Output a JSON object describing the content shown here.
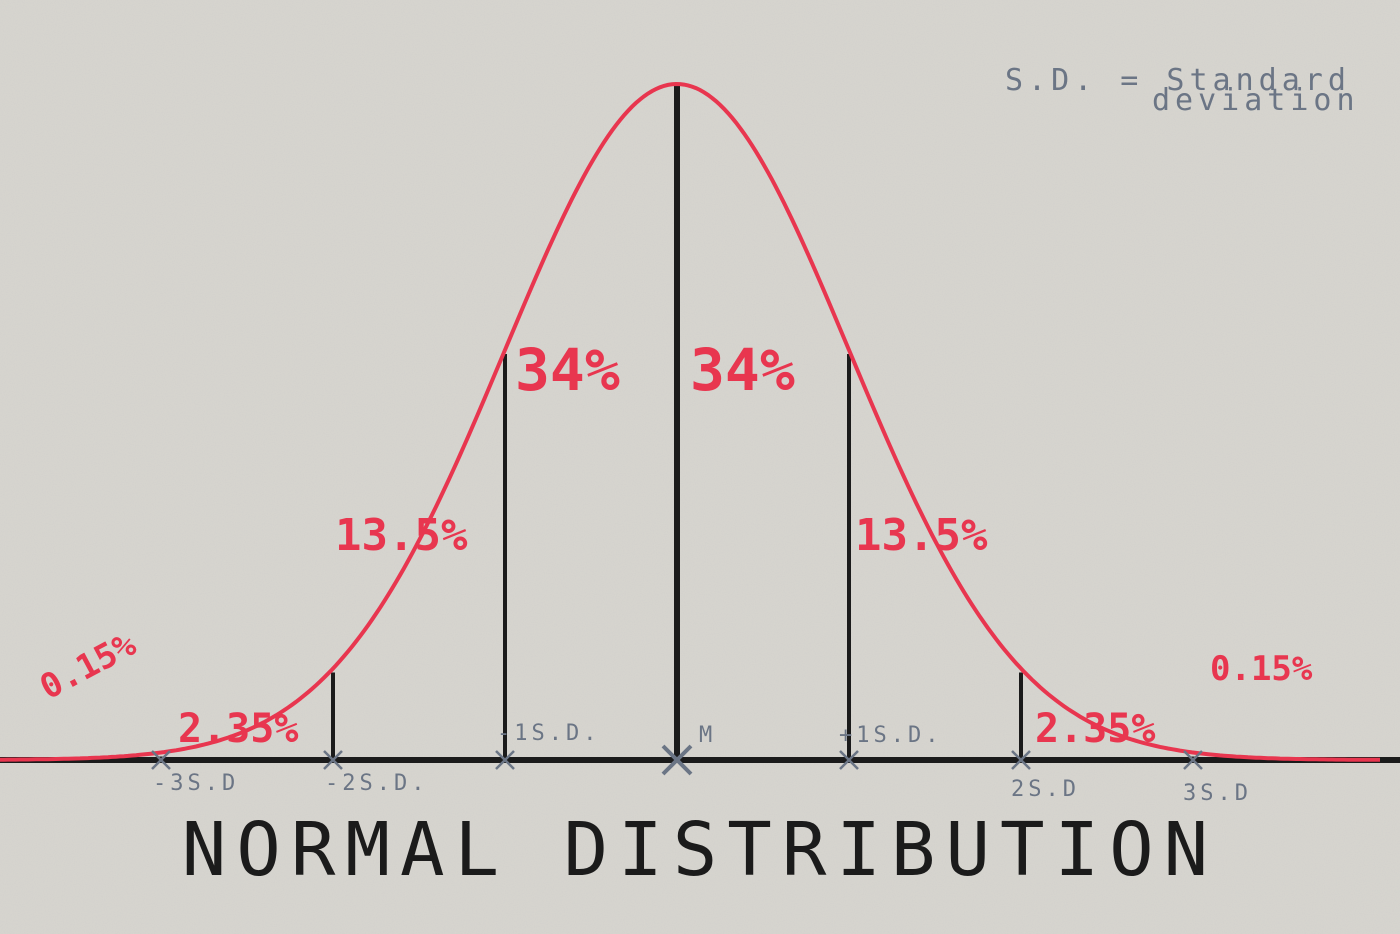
{
  "title": "NORMAL DISTRIBUTION",
  "note": {
    "line1": "S.D. = Standard",
    "line2": "deviation"
  },
  "colors": {
    "curve": "#e8364f",
    "lines": "#1b1b1b",
    "labels": "#6b7585",
    "background": "#d8d6d0"
  },
  "chart_data": {
    "type": "area",
    "title": "NORMAL DISTRIBUTION",
    "xlabel": "",
    "ylabel": "",
    "x_ticks": [
      "-3S.D",
      "-2S.D.",
      "-1S.D.",
      "M",
      "+1S.D.",
      "2S.D",
      "3S.D"
    ],
    "tick_sd": [
      -3,
      -2,
      -1,
      0,
      1,
      2,
      3
    ],
    "regions": [
      {
        "from": -4,
        "to": -3,
        "label": "0.15%"
      },
      {
        "from": -3,
        "to": -2,
        "label": "2.35%"
      },
      {
        "from": -2,
        "to": -1,
        "label": "13.5%"
      },
      {
        "from": -1,
        "to": 0,
        "label": "34%"
      },
      {
        "from": 0,
        "to": 1,
        "label": "34%"
      },
      {
        "from": 1,
        "to": 2,
        "label": "13.5%"
      },
      {
        "from": 2,
        "to": 3,
        "label": "2.35%"
      },
      {
        "from": 3,
        "to": 4,
        "label": "0.15%"
      }
    ],
    "grid": false,
    "legend": "none"
  }
}
